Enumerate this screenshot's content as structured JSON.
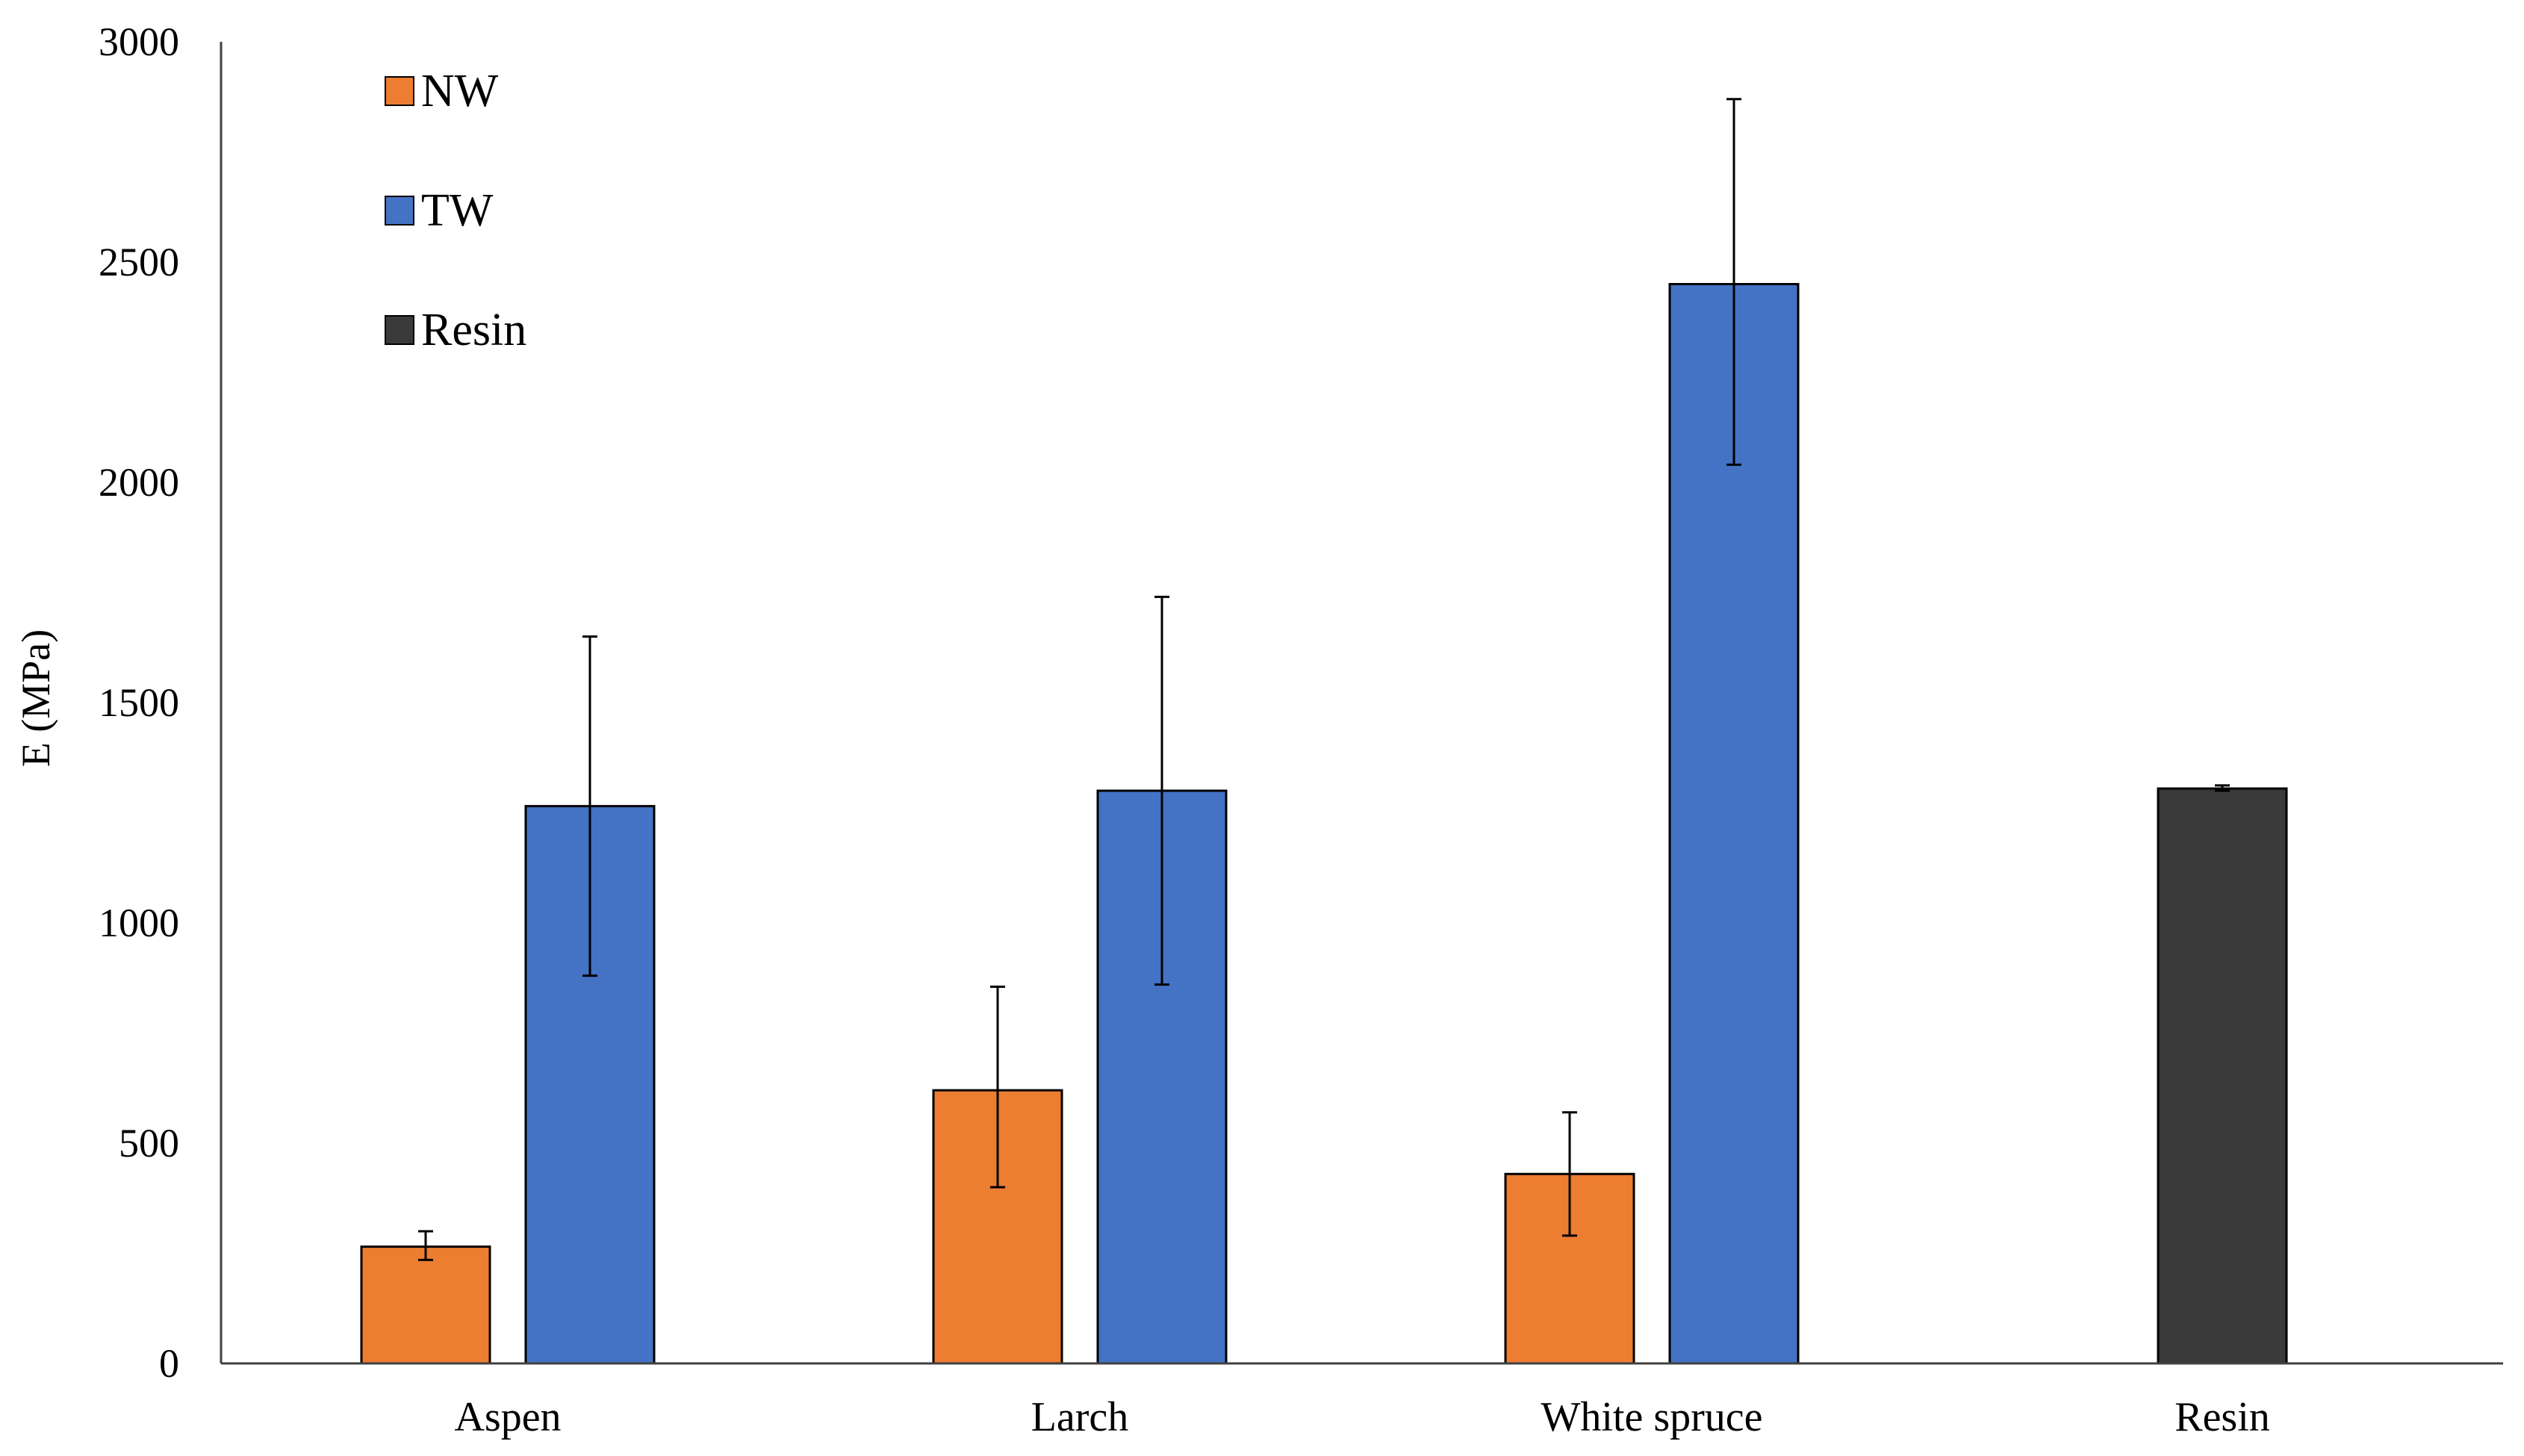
{
  "chart_data": {
    "type": "bar",
    "title": "",
    "xlabel": "",
    "ylabel": "E (MPa)",
    "ylim": [
      0,
      3000
    ],
    "yticks": [
      0,
      500,
      1000,
      1500,
      2000,
      2500,
      3000
    ],
    "yticks_text": [
      "0",
      "500",
      "1000",
      "1500",
      "2000",
      "2500",
      "3000"
    ],
    "categories": [
      "Aspen",
      "Larch",
      "White spruce",
      "Resin"
    ],
    "grid": false,
    "legend_position": "top-left",
    "series": [
      {
        "name": "NW",
        "color": "#ED7D31",
        "values": [
          265,
          620,
          430,
          null
        ],
        "err_low": [
          235,
          400,
          290,
          null
        ],
        "err_high": [
          300,
          855,
          570,
          null
        ]
      },
      {
        "name": "TW",
        "color": "#4472C4",
        "values": [
          1265,
          1300,
          2450,
          null
        ],
        "err_low": [
          880,
          860,
          2040,
          null
        ],
        "err_high": [
          1650,
          1740,
          2870,
          null
        ]
      },
      {
        "name": "Resin",
        "color": "#3A3A3A",
        "values": [
          null,
          null,
          null,
          1305
        ],
        "err_low": [
          null,
          null,
          null,
          1300
        ],
        "err_high": [
          null,
          null,
          null,
          1312
        ]
      }
    ]
  }
}
